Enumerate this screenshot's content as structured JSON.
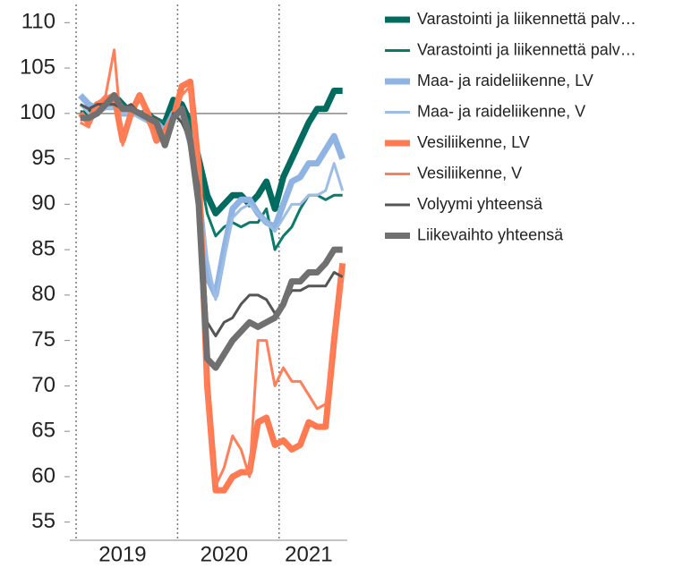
{
  "chart_data": {
    "type": "line",
    "categories": [
      null,
      null,
      null,
      null,
      null,
      "2019",
      null,
      null,
      null,
      null,
      null,
      null,
      null,
      null,
      null,
      null,
      null,
      "2020",
      null,
      null,
      null,
      null,
      null,
      null,
      null,
      null,
      null,
      "2021",
      null,
      null,
      null,
      null
    ],
    "ylim": [
      53,
      112
    ],
    "yticks": [
      55,
      60,
      65,
      70,
      75,
      80,
      85,
      90,
      95,
      100,
      105,
      110
    ],
    "hline": 100,
    "series": [
      {
        "name": "Varastointi ja liikennettä palv…",
        "color": "#006b5e",
        "line_width": 7,
        "values": [
          100,
          100,
          101,
          101,
          102,
          101,
          100,
          100,
          100,
          99,
          99,
          101.5,
          101,
          99,
          95,
          91,
          89,
          90,
          91,
          91,
          90,
          91,
          92.5,
          89.5,
          93,
          95,
          97,
          99,
          100.5,
          100.5,
          102.5,
          102.5
        ]
      },
      {
        "name": "Varastointi ja liikennettä palv…",
        "color": "#0b7a6a",
        "line_width": 3,
        "values": [
          101,
          100.5,
          101,
          101,
          101.5,
          101,
          100.5,
          100,
          100,
          99.5,
          99,
          100,
          100,
          99,
          94,
          89,
          86.5,
          87.5,
          88,
          87.5,
          88,
          88,
          89.5,
          85,
          86.5,
          87.5,
          89.5,
          91,
          91,
          90.5,
          91,
          91
        ]
      },
      {
        "name": "Maa- ja raideliikenne, LV",
        "color": "#8fb4e3",
        "line_width": 7,
        "values": [
          102,
          101,
          100.5,
          101,
          101,
          100,
          100,
          100,
          99.5,
          99,
          98,
          100,
          100.5,
          97,
          91,
          82,
          80,
          85,
          89.5,
          90.5,
          90.5,
          89,
          88,
          87.5,
          90,
          92.5,
          93,
          94.5,
          94.5,
          96,
          97.5,
          95
        ]
      },
      {
        "name": "Maa- ja raideliikenne, V",
        "color": "#9dbde6",
        "line_width": 3,
        "values": [
          101,
          100,
          100,
          100.5,
          100.5,
          100,
          100,
          99.5,
          99,
          99,
          98,
          99.5,
          99.5,
          96,
          91,
          84,
          79.5,
          84,
          88.5,
          89.5,
          90,
          89,
          88,
          87,
          88.5,
          90,
          90,
          91,
          91,
          91.5,
          94.5,
          91.5
        ]
      },
      {
        "name": "Vesiliikenne, LV",
        "color": "#ff7a50",
        "line_width": 7,
        "values": [
          100,
          99,
          101,
          101.5,
          102,
          97,
          100,
          102,
          100,
          97,
          98,
          99.5,
          103,
          103.5,
          94,
          70,
          58.5,
          58.5,
          60,
          60.5,
          60.5,
          66,
          66.5,
          63.5,
          64,
          63,
          63.5,
          66,
          65.5,
          65.5,
          75,
          83.5
        ]
      },
      {
        "name": "Vesiliikenne, V",
        "color": "#ff7f5a",
        "line_width": 3,
        "values": [
          99,
          98.5,
          101,
          102,
          107,
          96.5,
          100,
          102,
          99,
          97,
          98,
          99,
          102,
          103,
          93,
          68,
          59,
          61,
          64.5,
          63,
          60,
          75,
          75,
          70,
          72,
          70.5,
          70.5,
          69,
          67.5,
          68,
          75,
          82
        ]
      },
      {
        "name": "Volyymi yhteensä",
        "color": "#555555",
        "line_width": 3,
        "values": [
          101,
          100.5,
          101,
          101,
          101,
          100.5,
          101,
          100,
          99.5,
          99.5,
          97,
          100,
          99,
          97,
          92,
          77,
          75.5,
          77,
          77.5,
          79,
          80,
          80,
          79.5,
          78,
          79,
          80.5,
          80.5,
          81,
          81,
          81,
          82.5,
          82
        ]
      },
      {
        "name": "Liikevaihto yhteensä",
        "color": "#707070",
        "line_width": 7,
        "values": [
          99.5,
          99.5,
          100,
          101,
          102,
          100.5,
          100.5,
          100,
          99.5,
          99,
          96.5,
          99.5,
          100.5,
          97,
          90,
          73,
          72,
          73.5,
          75,
          76,
          77,
          76.5,
          77,
          77.5,
          79,
          81.5,
          81.5,
          82.5,
          82.5,
          83.5,
          85,
          85
        ]
      }
    ]
  }
}
